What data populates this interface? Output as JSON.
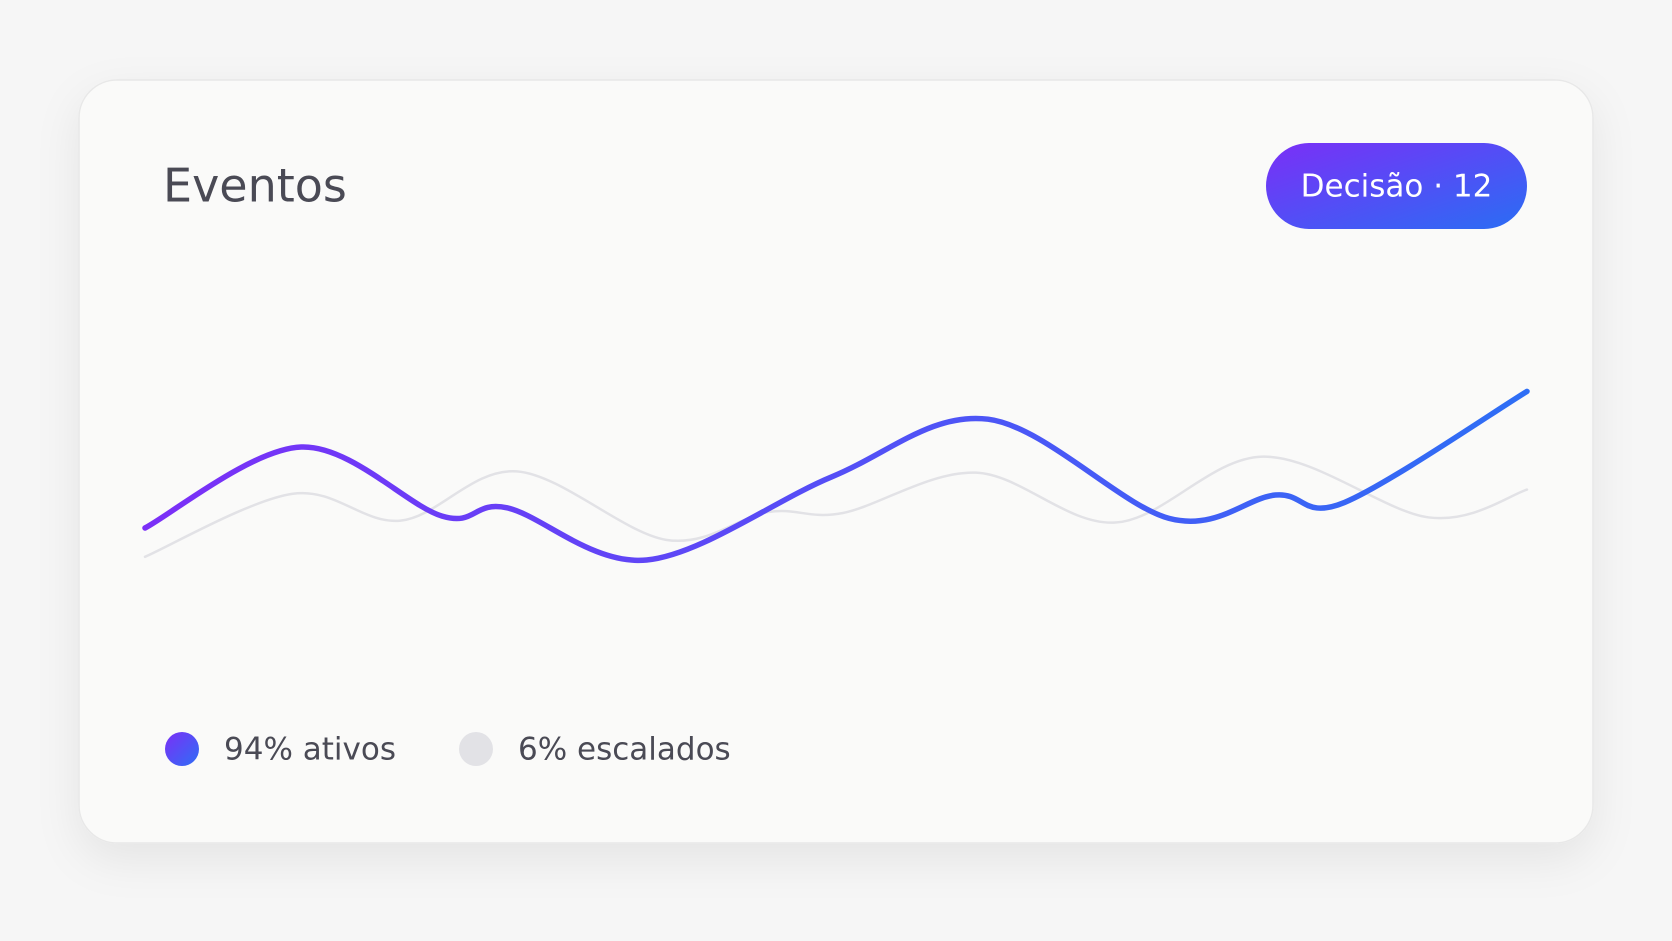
{
  "badge": {
    "label": "Decisão · 12",
    "colors": [
      "#7b2ff7",
      "#2a6df4"
    ]
  },
  "chart_data": {
    "type": "line",
    "title": "Eventos",
    "xlim": [
      0,
      100
    ],
    "ylim": [
      0,
      100
    ],
    "series": [
      {
        "name": "94% ativos",
        "colors": [
          "#7b2ff7",
          "#2e6ef5"
        ],
        "x": [
          0,
          11.3,
          21.5,
          26.2,
          36.3,
          49.7,
          61.0,
          74.1,
          81.8,
          86.8,
          100
        ],
        "values": [
          35,
          60.3,
          38.7,
          41.3,
          25,
          51,
          69,
          38,
          45.3,
          43,
          77.7
        ]
      },
      {
        "name": "6% escalados",
        "color": "#e2e2e6",
        "x": [
          0,
          10.7,
          18.5,
          26.9,
          37.7,
          45.1,
          50.5,
          60.1,
          70.2,
          80.9,
          92.9,
          100
        ],
        "values": [
          26,
          45.7,
          37.3,
          52.7,
          31.3,
          40,
          39.7,
          52.3,
          36.7,
          57.3,
          38.3,
          47
        ]
      }
    ]
  }
}
